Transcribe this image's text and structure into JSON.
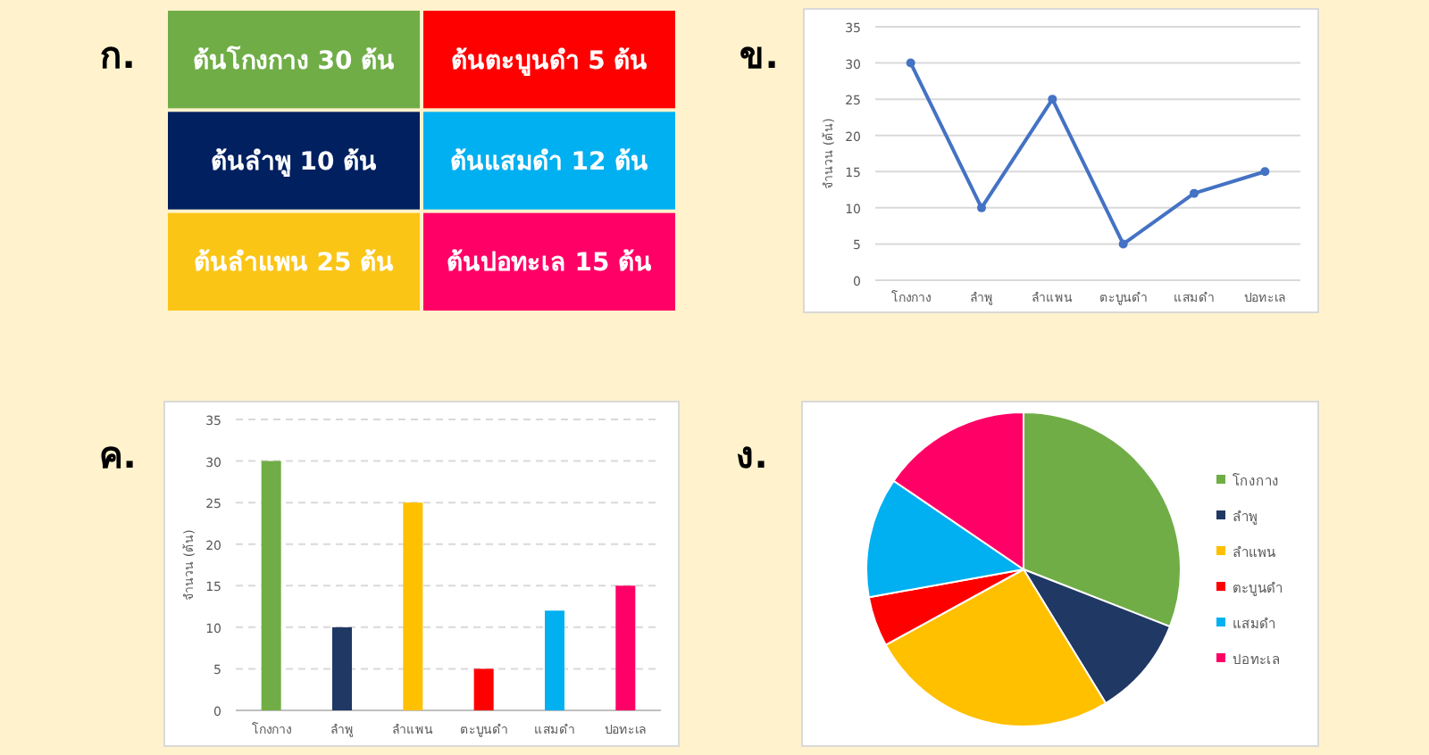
{
  "chart_data": [
    {
      "type": "other",
      "title": "ก.",
      "annotations": [
        "ต้นโกงกาง 30 ต้น",
        "ต้นตะบูนดำ 5 ต้น",
        "ต้นลำพู 10 ต้น",
        "ต้นแสมดำ 12 ต้น",
        "ต้นลำแพน 25 ต้น",
        "ต้นปอทะเล 15 ต้น"
      ],
      "colors": [
        "#70ad47",
        "#ff0000",
        "#002060",
        "#00b0f0",
        "#fbc516",
        "#ff0066"
      ]
    },
    {
      "type": "line",
      "title": "ข.",
      "ylabel": "จำนวน (ต้น)",
      "categories": [
        "โกงกาง",
        "ลำพู",
        "ลำแพน",
        "ตะบูนดำ",
        "แสมดำ",
        "ปอทะเล"
      ],
      "series": [
        {
          "color": "#4472c4",
          "values": [
            30,
            10,
            25,
            5,
            12,
            15
          ]
        }
      ],
      "ylim": [
        0,
        35
      ],
      "yticks": [
        0,
        5,
        10,
        15,
        20,
        25,
        30,
        35
      ],
      "grid": "y",
      "marker": "circle",
      "line_style": "solid"
    },
    {
      "type": "bar",
      "title": "ค.",
      "ylabel": "จำนวน (ต้น)",
      "categories": [
        "โกงกาง",
        "ลำพู",
        "ลำแพน",
        "ตะบูนดำ",
        "แสมดำ",
        "ปอทะเล"
      ],
      "values": [
        30,
        10,
        25,
        5,
        12,
        15
      ],
      "colors": [
        "#70ad47",
        "#203864",
        "#ffc000",
        "#ff0000",
        "#00b0f0",
        "#ff0066"
      ],
      "ylim": [
        0,
        35
      ],
      "yticks": [
        0,
        5,
        10,
        15,
        20,
        25,
        30,
        35
      ],
      "grid": "y"
    },
    {
      "type": "pie",
      "title": "ง.",
      "categories": [
        "โกงกาง",
        "ลำพู",
        "ลำแพน",
        "ตะบูนดำ",
        "แสมดำ",
        "ปอทะเล"
      ],
      "values": [
        30.93,
        10.31,
        25.77,
        5.15,
        12.37,
        15.47
      ],
      "colors": [
        "#70ad47",
        "#203864",
        "#ffc000",
        "#ff0000",
        "#00b0f0",
        "#ff0066"
      ],
      "legend": "right"
    }
  ]
}
